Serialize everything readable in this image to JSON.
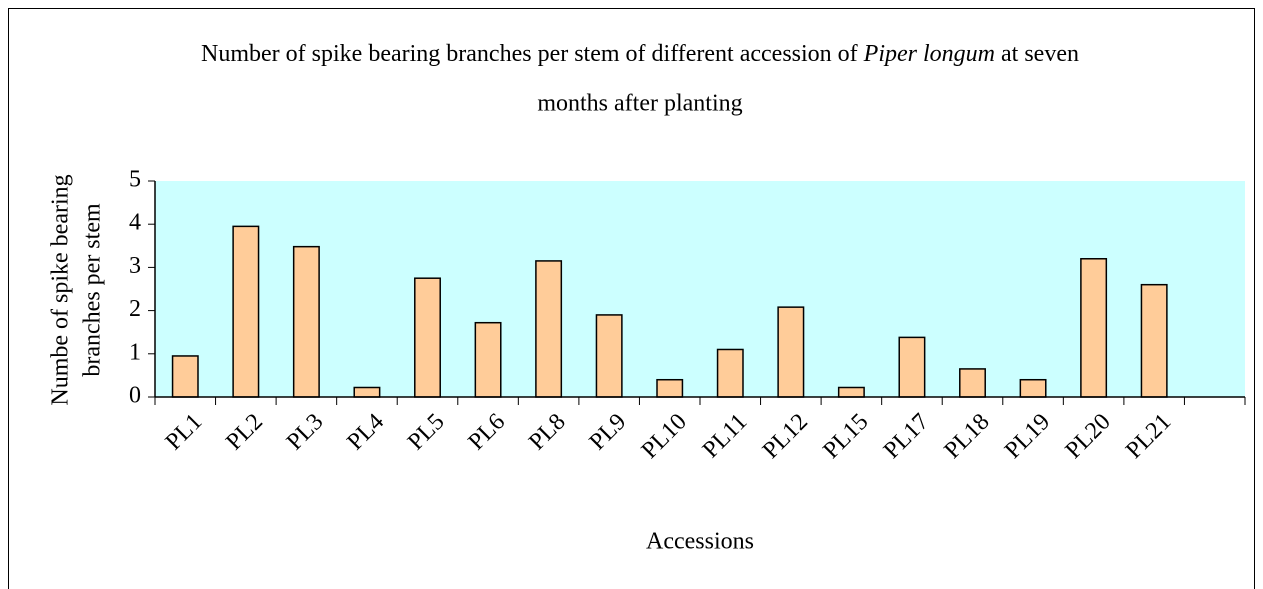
{
  "chart_data": {
    "type": "bar",
    "title": [
      "Number of spike bearing branches per stem of different accession of ",
      "Piper longum",
      "  at seven",
      "months after planting"
    ],
    "y_label": [
      "Numbe of spike bearing",
      "branches per stem"
    ],
    "x_label": "Accessions",
    "categories": [
      "PL1",
      "PL2",
      "PL3",
      "PL4",
      "PL5",
      "PL6",
      "PL8",
      "PL9",
      "PL10",
      "PL11",
      "PL12",
      "PL15",
      "PL17",
      "PL18",
      "PL19",
      "PL20",
      "PL21",
      null
    ],
    "values": [
      0.95,
      3.95,
      3.48,
      0.22,
      2.75,
      1.72,
      3.15,
      1.9,
      0.4,
      1.1,
      2.08,
      0.22,
      1.38,
      0.65,
      0.4,
      3.2,
      2.6,
      null
    ],
    "color": "#ffcc99",
    "background": "#ccffff",
    "ylim": [
      0,
      5
    ],
    "yticks": [
      0,
      1,
      2,
      3,
      4,
      5
    ]
  }
}
